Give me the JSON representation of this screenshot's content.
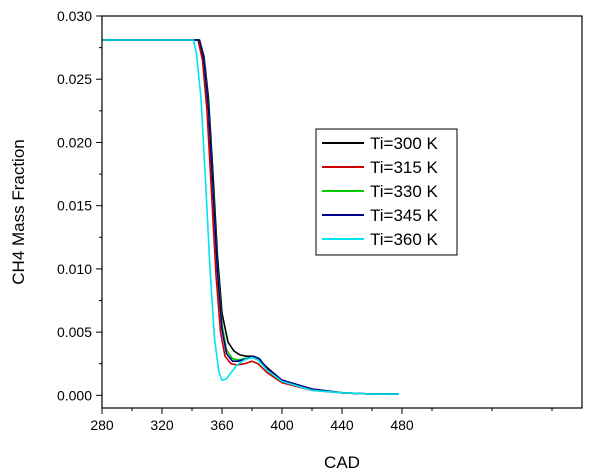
{
  "chart_data": {
    "type": "line",
    "xlabel": "CAD",
    "ylabel": "CH4 Mass Fraction",
    "xlim": [
      280,
      600
    ],
    "ylim": [
      -0.001,
      0.03
    ],
    "x_ticks": [
      "280",
      "320",
      "360",
      "400",
      "440",
      "480"
    ],
    "y_ticks": [
      "0.000",
      "0.005",
      "0.010",
      "0.015",
      "0.020",
      "0.025",
      "0.030"
    ],
    "grid": false,
    "legend_position": "center-right",
    "series": [
      {
        "name": "Ti=300 K",
        "color": "#000000",
        "x": [
          280,
          343,
          345,
          348,
          351,
          354,
          357,
          360,
          364,
          368,
          372,
          376,
          380,
          384,
          390,
          400,
          420,
          440,
          460,
          478
        ],
        "y": [
          0.0281,
          0.0281,
          0.0281,
          0.0268,
          0.0235,
          0.0175,
          0.011,
          0.0065,
          0.0042,
          0.0035,
          0.0032,
          0.0031,
          0.0031,
          0.0029,
          0.0022,
          0.0012,
          0.0005,
          0.0002,
          0.0001,
          0.0001
        ]
      },
      {
        "name": "Ti=315 K",
        "color": "#cc0000",
        "x": [
          280,
          342,
          344,
          347,
          350,
          353,
          356,
          359,
          362,
          366,
          370,
          375,
          380,
          384,
          390,
          400,
          420,
          440,
          460,
          478
        ],
        "y": [
          0.0281,
          0.0281,
          0.0281,
          0.0265,
          0.0225,
          0.016,
          0.0095,
          0.005,
          0.0031,
          0.0025,
          0.0024,
          0.0025,
          0.0027,
          0.0025,
          0.0018,
          0.001,
          0.0004,
          0.0002,
          0.0001,
          0.0001
        ]
      },
      {
        "name": "Ti=330 K",
        "color": "#00cc00",
        "x": [
          280,
          343,
          345,
          348,
          351,
          354,
          357,
          360,
          363,
          367,
          371,
          375,
          380,
          384,
          390,
          400,
          420,
          440,
          460,
          478
        ],
        "y": [
          0.0281,
          0.0281,
          0.0281,
          0.0266,
          0.0228,
          0.0165,
          0.01,
          0.0056,
          0.0036,
          0.0029,
          0.0028,
          0.0029,
          0.003,
          0.0028,
          0.002,
          0.0011,
          0.0005,
          0.0002,
          0.0001,
          0.0001
        ]
      },
      {
        "name": "Ti=345 K",
        "color": "#00008b",
        "x": [
          280,
          343,
          345,
          348,
          351,
          354,
          357,
          360,
          363,
          367,
          371,
          376,
          381,
          385,
          390,
          400,
          420,
          440,
          460,
          478
        ],
        "y": [
          0.0281,
          0.0281,
          0.0281,
          0.0265,
          0.0226,
          0.0162,
          0.0097,
          0.0052,
          0.0033,
          0.0027,
          0.0027,
          0.0029,
          0.0031,
          0.0029,
          0.0021,
          0.0012,
          0.0005,
          0.0002,
          0.0001,
          0.0001
        ]
      },
      {
        "name": "Ti=360 K",
        "color": "#00e5ee",
        "x": [
          280,
          341,
          343,
          346,
          349,
          352,
          355,
          358,
          360,
          363,
          366,
          370,
          375,
          380,
          384,
          390,
          400,
          420,
          440,
          460,
          478
        ],
        "y": [
          0.0281,
          0.0281,
          0.027,
          0.0235,
          0.017,
          0.01,
          0.0045,
          0.0018,
          0.0012,
          0.0013,
          0.0018,
          0.0024,
          0.0028,
          0.003,
          0.0028,
          0.002,
          0.0011,
          0.0004,
          0.0002,
          0.0001,
          0.0001
        ]
      }
    ]
  }
}
